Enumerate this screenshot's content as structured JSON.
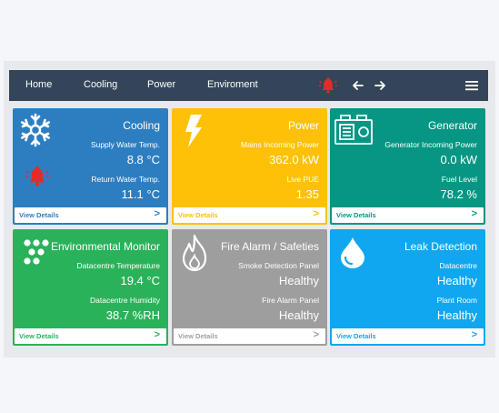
{
  "nav": {
    "items": [
      "Home",
      "Cooling",
      "Power",
      "Enviroment"
    ],
    "icons": [
      "alarm-bell-icon",
      "arrow-left-icon",
      "arrow-right-icon",
      "hamburger-menu-icon"
    ]
  },
  "colors": {
    "navbar": "#354559",
    "cooling": "#2d7ec1",
    "power": "#fec107",
    "generator": "#079684",
    "environmental": "#2ab25a",
    "fire": "#9e9e9e",
    "leak": "#10a7f0",
    "alarm": "#e32b2b"
  },
  "cards": {
    "cooling": {
      "title": "Cooling",
      "icon": "snowflake-icon",
      "alarm_icon": "alarm-bell-icon",
      "label1": "Supply Water Temp.",
      "value1": "8.8 °C",
      "label2": "Return Water Temp.",
      "value2": "11.1 °C",
      "footer": "View Details",
      "arrow": ">"
    },
    "power": {
      "title": "Power",
      "icon": "lightning-bolt-icon",
      "label1": "Mains Incoming Power",
      "value1": "362.0 kW",
      "label2": "Live PUE",
      "value2": "1.35",
      "footer": "View Details",
      "arrow": ">"
    },
    "generator": {
      "title": "Generator",
      "icon": "generator-icon",
      "label1": "Generator Incoming Power",
      "value1": "0.0 kW",
      "label2": "Fuel Level",
      "value2": "78.2 %",
      "footer": "View Details",
      "arrow": ">"
    },
    "environmental": {
      "title": "Environmental Monitor",
      "icon": "dots-grid-icon",
      "label1": "Datacentre Temperature",
      "value1": "19.4 °C",
      "label2": "Datacentre Humidity",
      "value2": "38.7 %RH",
      "footer": "View Details",
      "arrow": ">"
    },
    "fire": {
      "title": "Fire Alarm / Safeties",
      "icon": "flame-icon",
      "label1": "Smoke Detection Panel",
      "value1": "Healthy",
      "label2": "Fire Alarm Panel",
      "value2": "Healthy",
      "footer": "View Details",
      "arrow": ">"
    },
    "leak": {
      "title": "Leak Detection",
      "icon": "water-drop-icon",
      "label1": "Datacentre",
      "value1": "Healthy",
      "label2": "Plant Room",
      "value2": "Healthy",
      "footer": "View Details",
      "arrow": ">"
    }
  }
}
